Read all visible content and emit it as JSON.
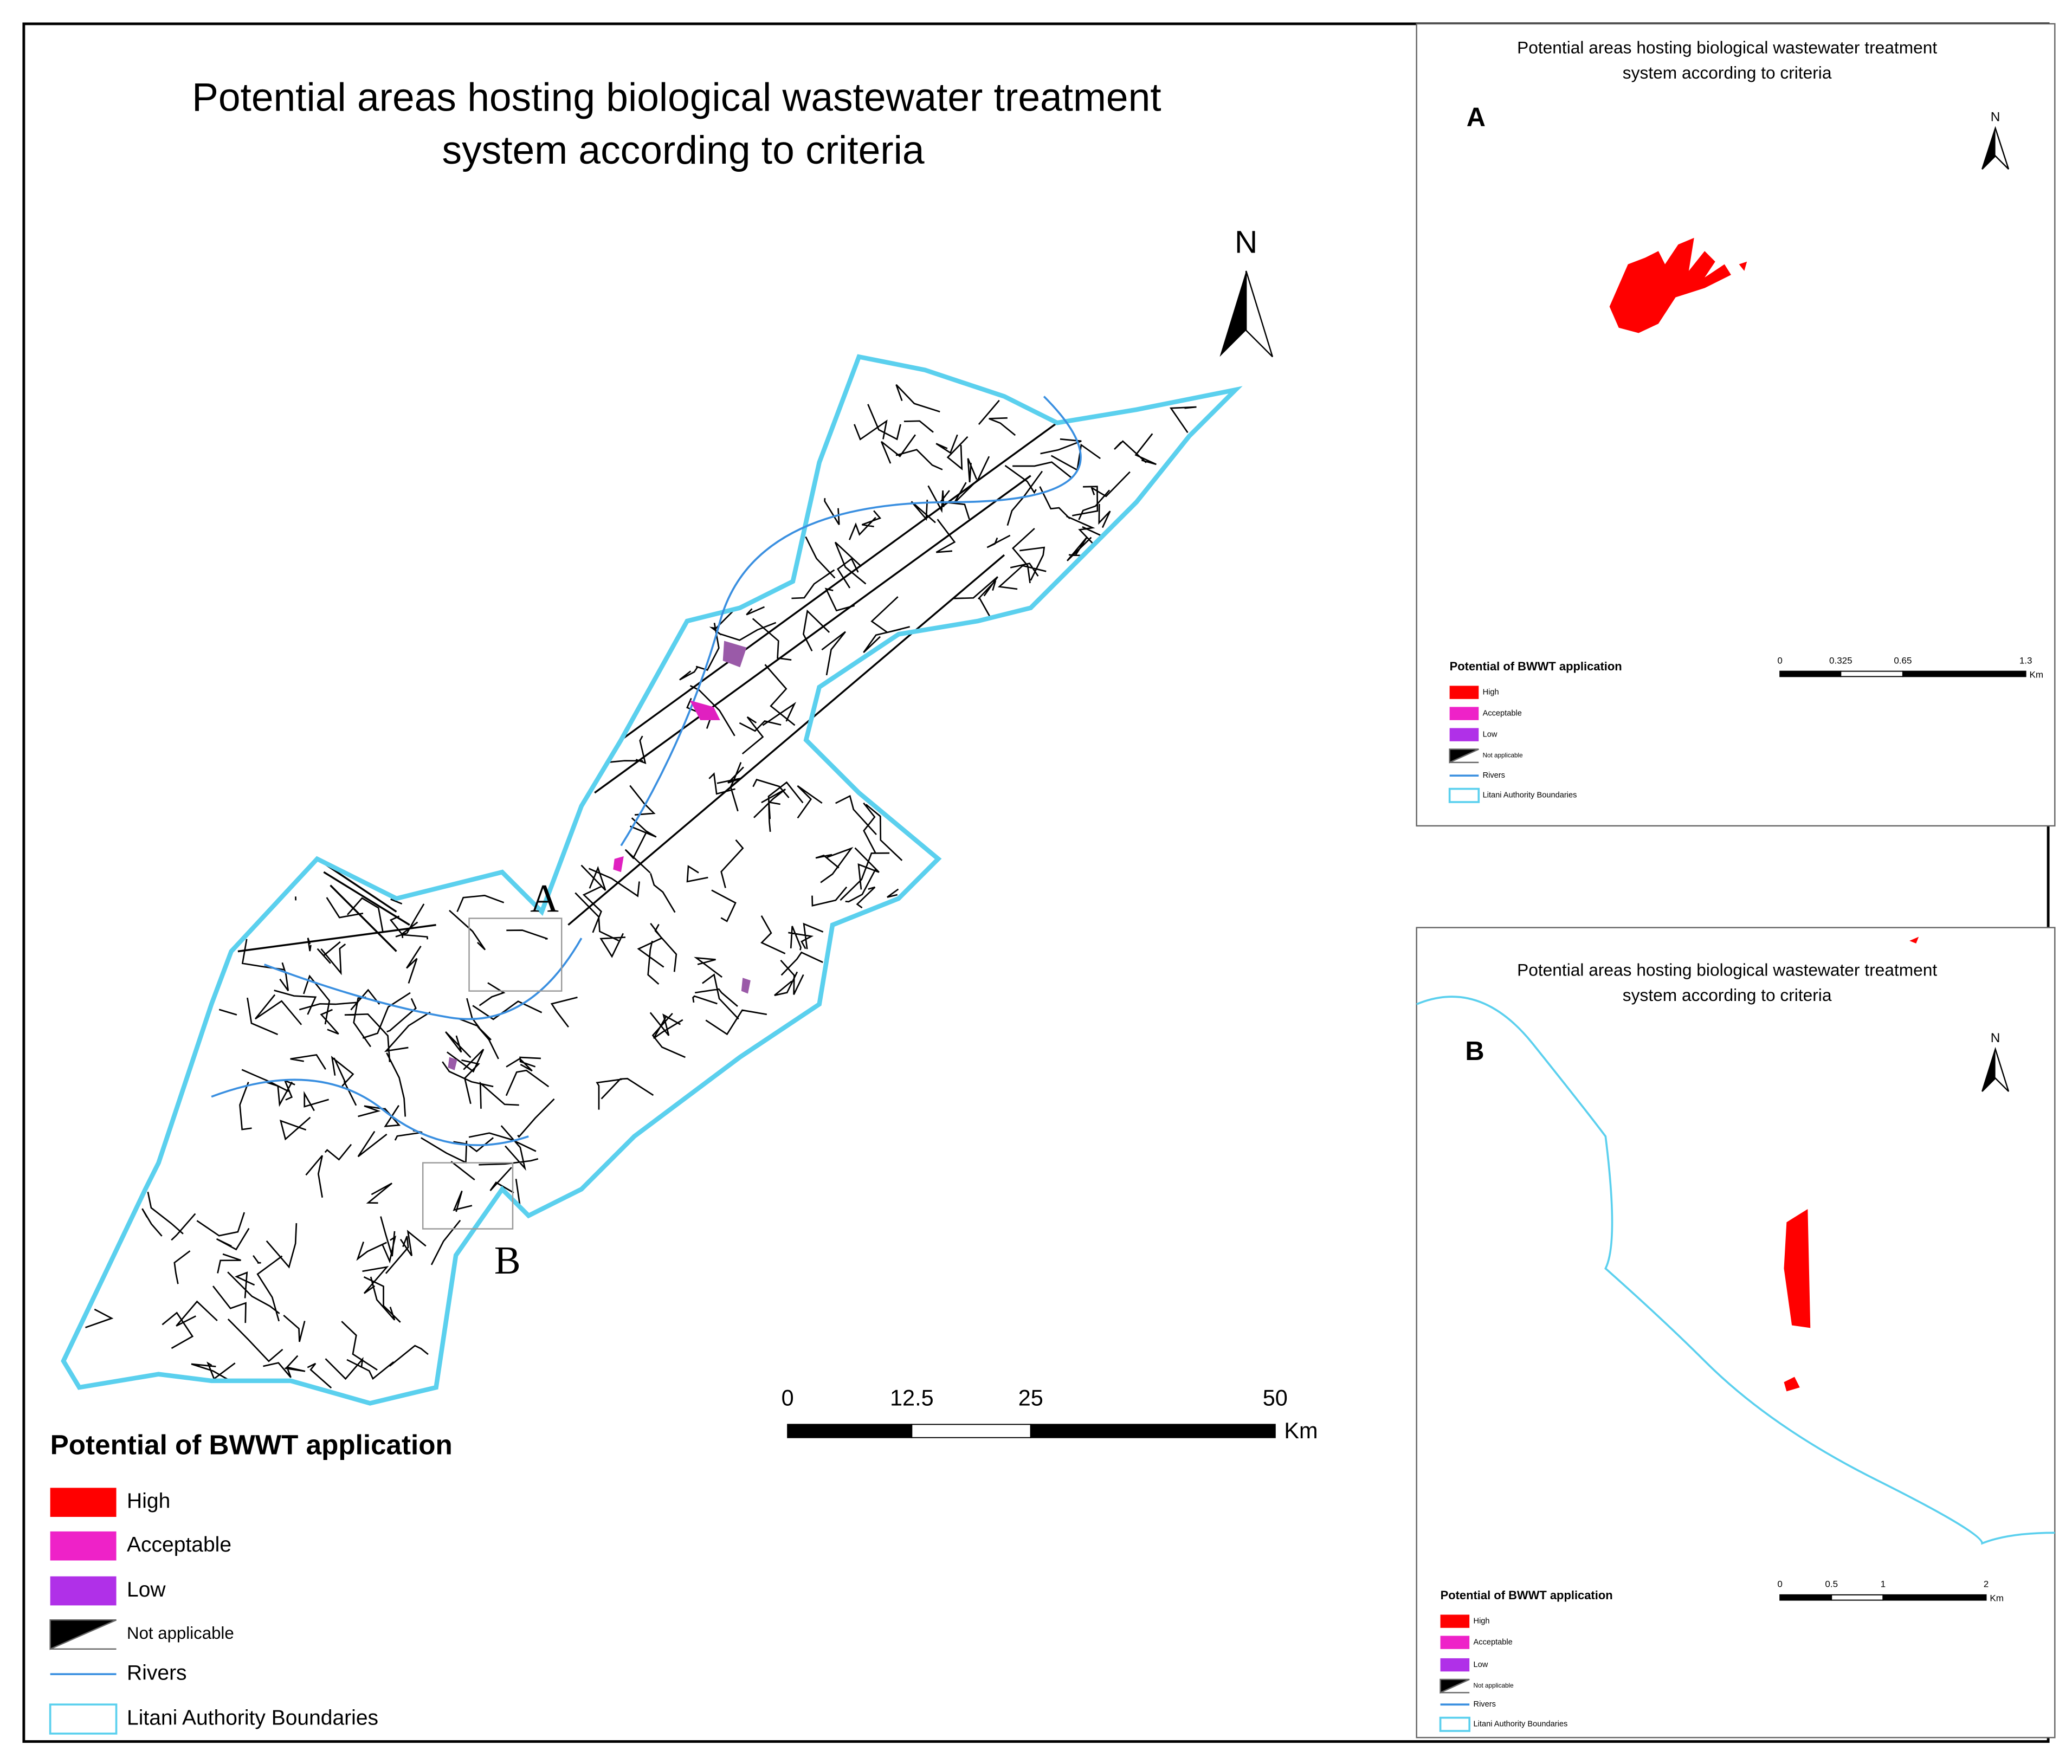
{
  "main_map": {
    "title_line1": "Potential areas hosting biological wastewater treatment",
    "title_line2": "system according to criteria",
    "north": "N",
    "inset_labels": [
      "A",
      "B"
    ],
    "scale_bar": {
      "ticks": [
        "0",
        "12.5",
        "25",
        "50"
      ],
      "unit": "Km"
    },
    "legend": {
      "title": "Potential of BWWT application",
      "items": [
        "High",
        "Acceptable",
        "Low",
        "Not applicable",
        "Rivers",
        "Litani Authority Boundaries"
      ]
    }
  },
  "inset_a": {
    "title_line1": "Potential areas hosting biological wastewater treatment",
    "title_line2": "system according to criteria",
    "label": "A",
    "north": "N",
    "scale_bar": {
      "ticks": [
        "0",
        "0.325",
        "0.65",
        "1.3"
      ],
      "unit": "Km"
    },
    "legend": {
      "title": "Potential of BWWT application",
      "items": [
        "High",
        "Acceptable",
        "Low",
        "Not applicable",
        "Rivers",
        "Litani Authority Boundaries"
      ]
    }
  },
  "inset_b": {
    "title_line1": "Potential areas hosting biological wastewater treatment",
    "title_line2": "system according to criteria",
    "label": "B",
    "north": "N",
    "scale_bar": {
      "ticks": [
        "0",
        "0.5",
        "1",
        "2"
      ],
      "unit": "Km"
    },
    "legend": {
      "title": "Potential of BWWT application",
      "items": [
        "High",
        "Acceptable",
        "Low",
        "Not applicable",
        "Rivers",
        "Litani Authority Boundaries"
      ]
    }
  }
}
